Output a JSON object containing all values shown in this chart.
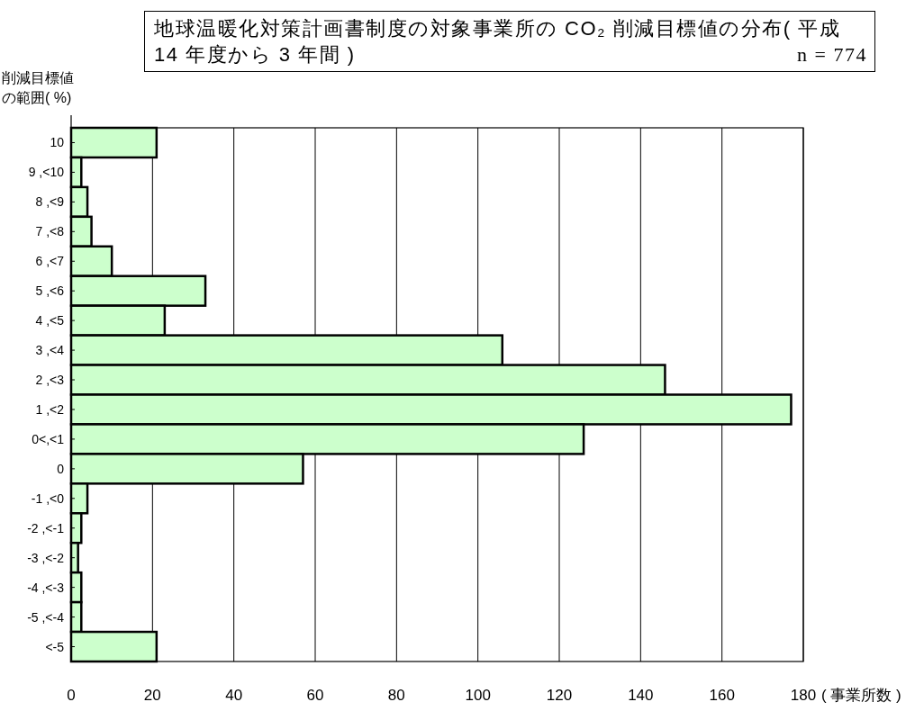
{
  "chart_data": {
    "type": "bar",
    "orientation": "horizontal",
    "title": "地球温暖化対策計画書制度の対象事業所の CO₂ 削減目標値の分布( 平成 14 年度から 3 年間 )",
    "annotations": [
      "n = 774"
    ],
    "ylabel": "削減目標値の範囲( %)",
    "xlabel": "( 事業所数 )",
    "categories": [
      "10",
      "9 ,<10",
      "8 ,<9",
      "7 ,<8",
      "6 ,<7",
      "5 ,<6",
      "4 ,<5",
      "3 ,<4",
      "2 ,<3",
      "1 ,<2",
      "0<,<1",
      "0",
      "-1 ,<0",
      "-2 ,<-1",
      "-3 ,<-2",
      "-4 ,<-3",
      "-5 ,<-4",
      "<-5"
    ],
    "values": [
      21,
      2.5,
      4,
      5,
      10,
      33,
      23,
      106,
      146,
      177,
      126,
      57,
      4,
      2.5,
      1.7,
      2.5,
      2.5,
      21
    ],
    "color": "#ccffcc",
    "xlim": [
      0,
      180
    ],
    "xticks": [
      0,
      20,
      40,
      60,
      80,
      100,
      120,
      140,
      160,
      180
    ],
    "grid": "x"
  }
}
